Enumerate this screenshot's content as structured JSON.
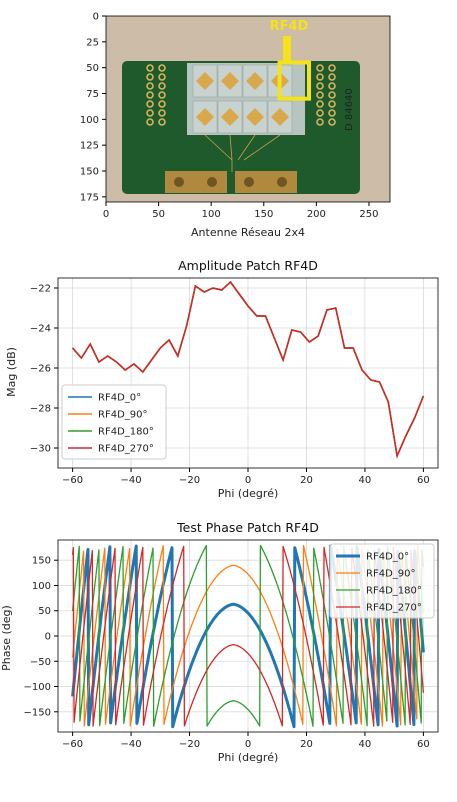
{
  "chart_data": [
    {
      "type": "image",
      "xlabel": "Antenne Réseau 2x4",
      "annotation": "RF4D",
      "xlim": [
        0,
        270
      ],
      "ylim": [
        180,
        0
      ],
      "xticks": [
        0,
        50,
        100,
        150,
        200,
        250
      ],
      "yticks": [
        0,
        25,
        50,
        75,
        100,
        125,
        150,
        175
      ],
      "highlight_box": {
        "x": [
          165,
          193
        ],
        "y": [
          45,
          80
        ]
      },
      "colors": {
        "board": "#1e5a2c",
        "background": "#cdbda8",
        "highlight": "#f4e21a",
        "pad": "#d9a84a"
      }
    },
    {
      "type": "line",
      "title": "Amplitude Patch  RF4D",
      "xlabel": "Phi (degré)",
      "ylabel": "Mag (dB)",
      "xlim": [
        -65,
        65
      ],
      "ylim": [
        -31,
        -21.5
      ],
      "xticks": [
        -60,
        -40,
        -20,
        0,
        20,
        40,
        60
      ],
      "yticks": [
        -22,
        -24,
        -26,
        -28,
        -30
      ],
      "grid": true,
      "legend": "lower-left",
      "x": [
        -60,
        -57,
        -54,
        -51,
        -48,
        -45,
        -42,
        -39,
        -36,
        -33,
        -30,
        -27,
        -24,
        -21,
        -18,
        -15,
        -12,
        -9,
        -6,
        -3,
        0,
        3,
        6,
        9,
        12,
        15,
        18,
        21,
        24,
        27,
        30,
        33,
        36,
        39,
        42,
        45,
        48,
        51,
        54,
        57,
        60
      ],
      "series": [
        {
          "name": "RF4D_0°",
          "color": "#1f77b4",
          "values": [
            -25.0,
            -25.5,
            -24.8,
            -25.7,
            -25.4,
            -25.7,
            -26.1,
            -25.8,
            -26.2,
            -25.6,
            -25.0,
            -24.6,
            -25.4,
            -23.9,
            -21.9,
            -22.2,
            -22.0,
            -22.1,
            -21.7,
            -22.3,
            -22.9,
            -23.4,
            -23.4,
            -24.5,
            -25.6,
            -24.1,
            -24.2,
            -24.7,
            -24.4,
            -23.1,
            -23.0,
            -25.0,
            -25.0,
            -26.1,
            -26.6,
            -26.7,
            -27.7,
            -30.4,
            -29.4,
            -28.5,
            -27.4
          ]
        },
        {
          "name": "RF4D_90°",
          "color": "#ff7f0e",
          "values": [
            -25.0,
            -25.5,
            -24.8,
            -25.7,
            -25.4,
            -25.7,
            -26.1,
            -25.8,
            -26.2,
            -25.6,
            -25.0,
            -24.6,
            -25.4,
            -23.9,
            -21.9,
            -22.2,
            -22.0,
            -22.1,
            -21.7,
            -22.3,
            -22.9,
            -23.4,
            -23.4,
            -24.5,
            -25.6,
            -24.1,
            -24.2,
            -24.7,
            -24.4,
            -23.1,
            -23.0,
            -25.0,
            -25.0,
            -26.1,
            -26.6,
            -26.7,
            -27.7,
            -30.4,
            -29.4,
            -28.5,
            -27.4
          ]
        },
        {
          "name": "RF4D_180°",
          "color": "#2ca02c",
          "values": [
            -25.0,
            -25.5,
            -24.8,
            -25.7,
            -25.4,
            -25.7,
            -26.1,
            -25.8,
            -26.2,
            -25.6,
            -25.0,
            -24.6,
            -25.4,
            -23.9,
            -21.9,
            -22.2,
            -22.0,
            -22.1,
            -21.7,
            -22.3,
            -22.9,
            -23.4,
            -23.4,
            -24.5,
            -25.6,
            -24.1,
            -24.2,
            -24.7,
            -24.4,
            -23.1,
            -23.0,
            -25.0,
            -25.0,
            -26.1,
            -26.6,
            -26.7,
            -27.7,
            -30.4,
            -29.4,
            -28.5,
            -27.4
          ]
        },
        {
          "name": "RF4D_270°",
          "color": "#d62728",
          "values": [
            -25.0,
            -25.5,
            -24.8,
            -25.7,
            -25.4,
            -25.7,
            -26.1,
            -25.8,
            -26.2,
            -25.6,
            -25.0,
            -24.6,
            -25.4,
            -23.9,
            -21.9,
            -22.2,
            -22.0,
            -22.1,
            -21.7,
            -22.3,
            -22.9,
            -23.4,
            -23.4,
            -24.5,
            -25.6,
            -24.1,
            -24.2,
            -24.7,
            -24.4,
            -23.1,
            -23.0,
            -25.0,
            -25.0,
            -26.1,
            -26.6,
            -26.7,
            -27.7,
            -30.4,
            -29.4,
            -28.5,
            -27.4
          ]
        }
      ]
    },
    {
      "type": "line",
      "title": "Test Phase Patch  RF4D",
      "xlabel": "Phi (degré)",
      "ylabel": "Phase (deg)",
      "xlim": [
        -65,
        65
      ],
      "ylim": [
        -190,
        190
      ],
      "xticks": [
        -60,
        -40,
        -20,
        0,
        20,
        40,
        60
      ],
      "yticks": [
        150,
        100,
        50,
        0,
        -50,
        -100,
        -150
      ],
      "grid": true,
      "legend": "upper-right",
      "series": [
        {
          "name": "RF4D_0°",
          "color": "#1f77b4",
          "linewidth": 3,
          "peak": 63,
          "offset": 0
        },
        {
          "name": "RF4D_90°",
          "color": "#ff7f0e",
          "linewidth": 1.3,
          "peak": 140,
          "offset": 77
        },
        {
          "name": "RF4D_180°",
          "color": "#2ca02c",
          "linewidth": 1.3,
          "peak": -128,
          "offset": 171
        },
        {
          "name": "RF4D_270°",
          "color": "#d62728",
          "linewidth": 1.3,
          "peak": -17,
          "offset": 280
        }
      ]
    }
  ]
}
